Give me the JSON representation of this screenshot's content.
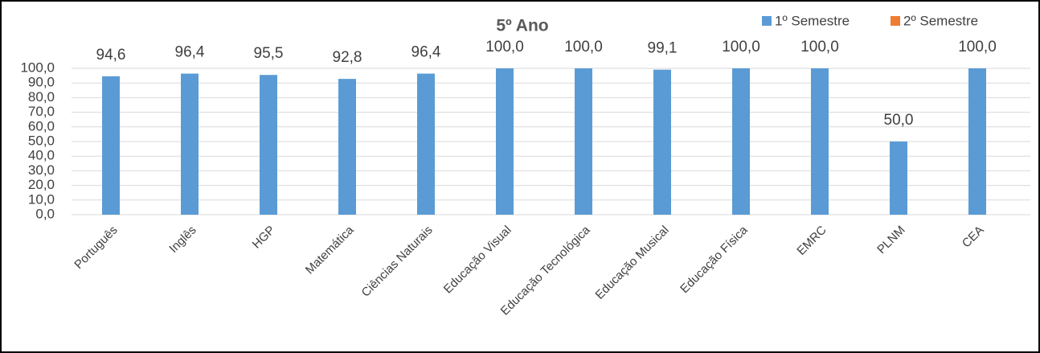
{
  "chart_data": {
    "type": "bar",
    "title": "5º Ano",
    "categories": [
      "Português",
      "Inglês",
      "HGP",
      "Matemática",
      "Ciências Naturais",
      "Educação Visual",
      "Educação Tecnológica",
      "Educação Musical",
      "Educação Física",
      "EMRC",
      "PLNM",
      "CEA"
    ],
    "series": [
      {
        "name": "1º Semestre",
        "color": "#5b9bd5",
        "values": [
          94.6,
          96.4,
          95.5,
          92.8,
          96.4,
          100,
          100,
          99.1,
          100,
          100,
          50,
          100
        ],
        "value_labels": [
          "94,6",
          "96,4",
          "95,5",
          "92,8",
          "96,4",
          "100,0",
          "100,0",
          "99,1",
          "100,0",
          "100,0",
          "50,0",
          "100,0"
        ]
      },
      {
        "name": "2º Semestre",
        "color": "#ed7d31",
        "values": [
          null,
          null,
          null,
          null,
          null,
          null,
          null,
          null,
          null,
          null,
          null,
          null
        ]
      }
    ],
    "ylim": [
      0,
      100
    ],
    "yticks": [
      {
        "value": 0,
        "label": "0,0"
      },
      {
        "value": 10,
        "label": "10,0"
      },
      {
        "value": 20,
        "label": "20,0"
      },
      {
        "value": 30,
        "label": "30,0"
      },
      {
        "value": 40,
        "label": "40,0"
      },
      {
        "value": 50,
        "label": "50,0"
      },
      {
        "value": 60,
        "label": "60,0"
      },
      {
        "value": 70,
        "label": "70,0"
      },
      {
        "value": 80,
        "label": "80,0"
      },
      {
        "value": 90,
        "label": "90,0"
      },
      {
        "value": 100,
        "label": "100,0"
      }
    ],
    "grid": true,
    "legend": "top-right"
  }
}
